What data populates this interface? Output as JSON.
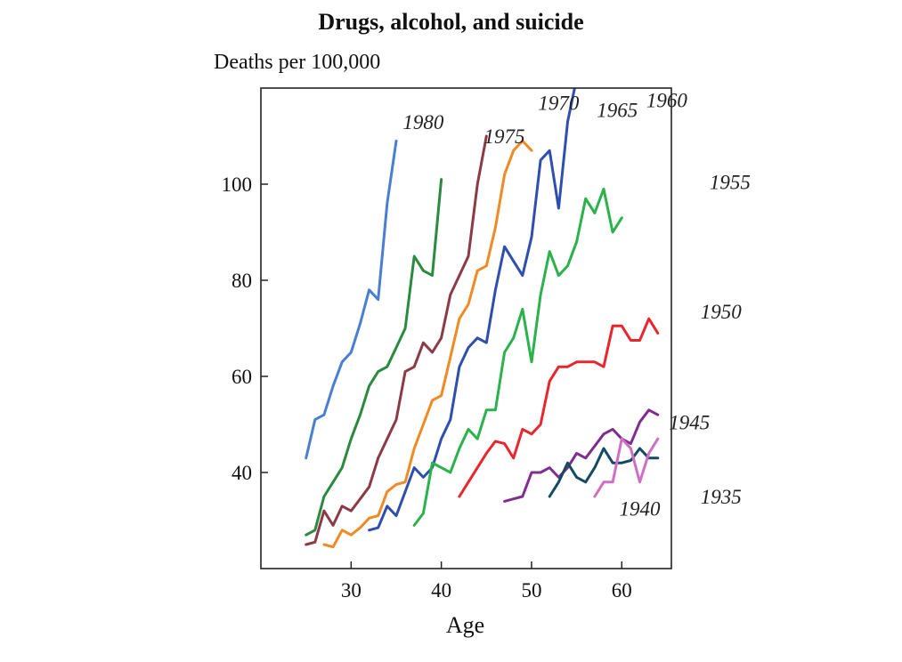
{
  "chart_data": {
    "type": "line",
    "title": "Drugs, alcohol, and suicide",
    "ylabel": "Deaths per 100,000",
    "xlabel": "Age",
    "xlim": [
      20,
      65.5
    ],
    "ylim": [
      20,
      120
    ],
    "xticks": [
      30,
      40,
      50,
      60
    ],
    "yticks": [
      40,
      60,
      80,
      100
    ],
    "series": [
      {
        "name": "1980",
        "color": "#4a7fcf",
        "label_at": [
          38,
          111.5
        ],
        "x": [
          25,
          26,
          27,
          28,
          29,
          30,
          31,
          32,
          33,
          34,
          35
        ],
        "y": [
          43,
          51,
          52,
          58,
          63,
          65,
          71,
          78,
          76,
          96,
          109
        ]
      },
      {
        "name": "1975",
        "color": "#2a8a3e",
        "label_at": [
          47,
          108.5
        ],
        "x": [
          25,
          26,
          27,
          28,
          29,
          30,
          31,
          32,
          33,
          34,
          35,
          36,
          37,
          38,
          39,
          40
        ],
        "y": [
          27,
          28,
          35,
          38,
          41,
          47,
          52,
          58,
          61,
          62,
          66,
          70,
          85,
          82,
          81,
          101
        ]
      },
      {
        "name": "1970",
        "color": "#8c3a46",
        "label_at": [
          53,
          115.5
        ],
        "x": [
          25,
          26,
          27,
          28,
          29,
          30,
          31,
          32,
          33,
          34,
          35,
          36,
          37,
          38,
          39,
          40,
          41,
          42,
          43,
          44,
          45
        ],
        "y": [
          25,
          25.5,
          32,
          29,
          33,
          32,
          34.5,
          37,
          43,
          47,
          51,
          61,
          62,
          67,
          65,
          68,
          77,
          81,
          85,
          100,
          110
        ]
      },
      {
        "name": "1965",
        "color": "#f08a24",
        "label_at": [
          59.5,
          114
        ]
      },
      {
        "name": "1960",
        "color": "#2e4fae",
        "label_at": [
          65,
          116
        ]
      },
      {
        "name": "1955",
        "color": "#2bb24b",
        "label_at": [
          72,
          99
        ]
      },
      {
        "name": "1950",
        "color": "#e8262d",
        "label_at": [
          71,
          72
        ]
      },
      {
        "name": "1945",
        "color": "#7f2e8e",
        "label_at": [
          67.5,
          49
        ]
      },
      {
        "name": "1940",
        "color": "#134b63",
        "label_at": [
          62,
          31
        ]
      },
      {
        "name": "1935",
        "color": "#cf6fc4",
        "label_at": [
          71,
          33.5
        ]
      }
    ]
  }
}
